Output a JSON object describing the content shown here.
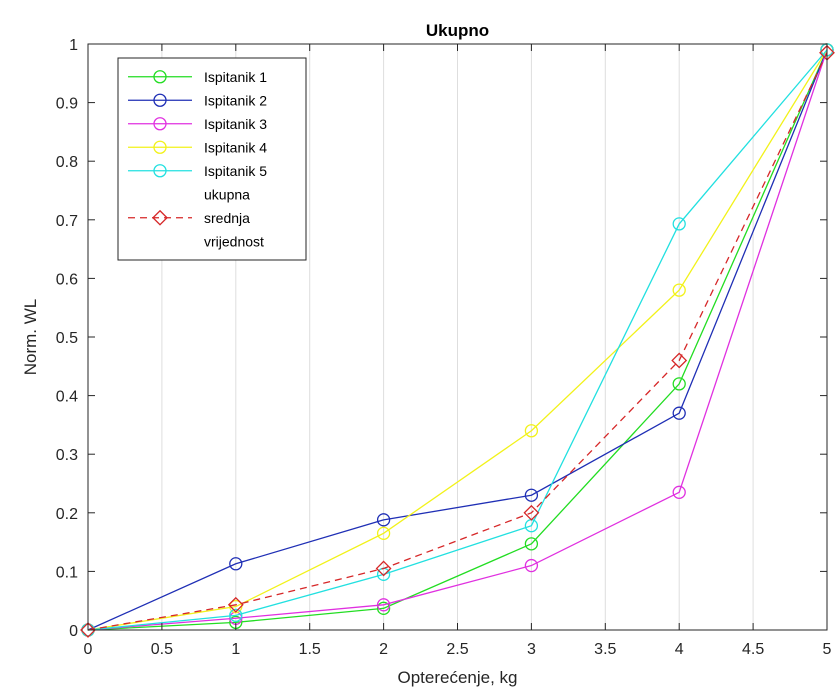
{
  "chart_data": {
    "type": "line",
    "title": "Ukupno",
    "xlabel": "Opterećenje, kg",
    "ylabel": "Norm. WL",
    "xlim": [
      0,
      5
    ],
    "ylim": [
      0,
      1
    ],
    "xticks": [
      0,
      0.5,
      1,
      1.5,
      2,
      2.5,
      3,
      3.5,
      4,
      4.5,
      5
    ],
    "xtick_labels": [
      "0",
      "0.5",
      "1",
      "1.5",
      "2",
      "2.5",
      "3",
      "3.5",
      "4",
      "4.5",
      "5"
    ],
    "yticks": [
      0,
      0.1,
      0.2,
      0.3,
      0.4,
      0.5,
      0.6,
      0.7,
      0.8,
      0.9,
      1
    ],
    "ytick_labels": [
      "0",
      "0.1",
      "0.2",
      "0.3",
      "0.4",
      "0.5",
      "0.6",
      "0.7",
      "0.8",
      "0.9",
      "1"
    ],
    "grid": "vertical",
    "legend_position": "top-left",
    "x": [
      0,
      1,
      2,
      3,
      4,
      5
    ],
    "series": [
      {
        "name": "Ispitanik 1",
        "color": "#22dd22",
        "marker": "circle",
        "dash": false,
        "values": [
          0,
          0.013,
          0.037,
          0.147,
          0.42,
          0.99
        ]
      },
      {
        "name": "Ispitanik 2",
        "color": "#1f2fb5",
        "marker": "circle",
        "dash": false,
        "values": [
          0,
          0.113,
          0.188,
          0.23,
          0.37,
          0.99
        ]
      },
      {
        "name": "Ispitanik 3",
        "color": "#e030e0",
        "marker": "circle",
        "dash": false,
        "values": [
          0,
          0.02,
          0.043,
          0.11,
          0.235,
          0.99
        ]
      },
      {
        "name": "Ispitanik 4",
        "color": "#f2f21a",
        "marker": "circle",
        "dash": false,
        "values": [
          0,
          0.04,
          0.165,
          0.34,
          0.58,
          0.99
        ]
      },
      {
        "name": "Ispitanik 5",
        "color": "#22e0e0",
        "marker": "circle",
        "dash": false,
        "values": [
          0,
          0.025,
          0.095,
          0.178,
          0.693,
          0.99
        ]
      },
      {
        "name": "ukupna srednja vrijednost",
        "legend_lines": [
          "ukupna",
          "srednja",
          "vrijednost"
        ],
        "color": "#d62728",
        "marker": "diamond",
        "dash": true,
        "values": [
          0,
          0.043,
          0.105,
          0.2,
          0.46,
          0.985
        ]
      }
    ]
  }
}
